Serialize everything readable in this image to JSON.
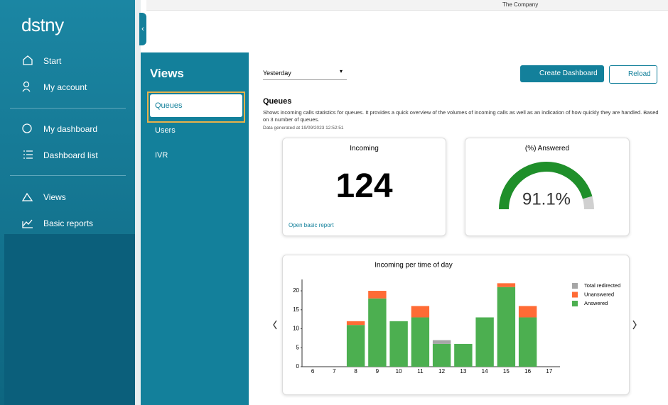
{
  "top_bar": {
    "company": "The Company"
  },
  "sidebar": {
    "logo": "dstny",
    "nav": [
      "Start",
      "My account",
      "My dashboard",
      "Dashboard list",
      "Views",
      "Basic reports"
    ]
  },
  "views_panel": {
    "title": "Views",
    "items": [
      "Queues",
      "Users",
      "IVR"
    ]
  },
  "toolbar": {
    "period": "Yesterday",
    "create": "Create Dashboard",
    "reload": "Reload"
  },
  "section": {
    "title": "Queues",
    "description": "Shows incoming calls statistics for queues. It provides a quick overview of the volumes of incoming calls as well as an indication of how quickly they are handled. Based on 3 number of queues.",
    "generated": "Data generated at 19/09/2023 12:52:51"
  },
  "incoming": {
    "title": "Incoming",
    "value": 124,
    "link": "Open basic report"
  },
  "gauge": {
    "title": "(%) Answered",
    "value": 91.1,
    "value_label": "91.1%",
    "color": "#1f8f2a",
    "track_color": "#d0d0d0"
  },
  "chart_data": {
    "type": "bar",
    "stacked": true,
    "title": "Incoming per time of day",
    "categories": [
      6,
      7,
      8,
      9,
      10,
      11,
      12,
      13,
      14,
      15,
      16,
      17
    ],
    "series": [
      {
        "name": "Total redirected",
        "color": "#a6a6a6",
        "values": [
          0,
          0,
          0,
          0,
          0,
          0,
          1,
          0,
          0,
          0,
          0,
          0
        ]
      },
      {
        "name": "Unanswered",
        "color": "#ff6b35",
        "values": [
          0,
          0,
          1,
          2,
          0,
          3,
          0,
          0,
          0,
          1,
          3,
          0
        ]
      },
      {
        "name": "Answered",
        "color": "#4caf50",
        "values": [
          0,
          0,
          11,
          18,
          12,
          13,
          6,
          6,
          13,
          21,
          13,
          0
        ]
      }
    ],
    "ylim": [
      0,
      23
    ],
    "yticks": [
      0,
      5,
      10,
      15,
      20
    ],
    "grid": false
  }
}
